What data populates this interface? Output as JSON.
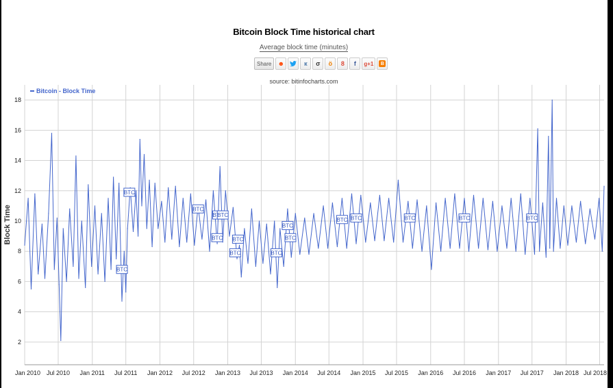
{
  "title": "Bitcoin Block Time historical chart",
  "subtitle": "Average block time (minutes)",
  "source": "source: bitinfocharts.com",
  "share": {
    "label": "Share",
    "buttons": [
      {
        "icon": "reddit-icon",
        "glyph": "☻",
        "color": "#ff4500"
      },
      {
        "icon": "twitter-icon",
        "glyph": "🐦",
        "color": "#1da1f2"
      },
      {
        "icon": "vk-icon",
        "glyph": "к",
        "color": "#4a76a8"
      },
      {
        "icon": "weibo-icon",
        "glyph": "σ",
        "color": "#333333"
      },
      {
        "icon": "odnoklassniki-icon",
        "glyph": "ö",
        "color": "#ee8208"
      },
      {
        "icon": "googleplus-icon",
        "glyph": "8",
        "color": "#dd4b39"
      },
      {
        "icon": "facebook-icon",
        "glyph": "f",
        "color": "#3b5998"
      },
      {
        "icon": "googleplus1-icon",
        "glyph": "g+1",
        "color": "#dd4b39"
      },
      {
        "icon": "blogger-icon",
        "glyph": "B",
        "color": "#f57d00"
      }
    ]
  },
  "chart_data": {
    "type": "line",
    "ylabel": "Block Time",
    "xlabel": "",
    "ylim": [
      0.5,
      19
    ],
    "yticks": [
      2,
      4,
      6,
      8,
      10,
      12,
      14,
      16,
      18
    ],
    "xlim": [
      "2010-01-01",
      "2018-07-25"
    ],
    "xticks": [
      {
        "date": "2010-01-01",
        "label": "Jan 2010"
      },
      {
        "date": "2010-07-01",
        "label": "Jul 2010"
      },
      {
        "date": "2011-01-01",
        "label": "Jan 2011"
      },
      {
        "date": "2011-07-01",
        "label": "Jul 2011"
      },
      {
        "date": "2012-01-01",
        "label": "Jan 2012"
      },
      {
        "date": "2012-07-01",
        "label": "Jul 2012"
      },
      {
        "date": "2013-01-01",
        "label": "Jan 2013"
      },
      {
        "date": "2013-07-01",
        "label": "Jul 2013"
      },
      {
        "date": "2014-01-01",
        "label": "Jan 2014"
      },
      {
        "date": "2014-07-01",
        "label": "Jul 2014"
      },
      {
        "date": "2015-01-01",
        "label": "Jan 2015"
      },
      {
        "date": "2015-07-01",
        "label": "Jul 2015"
      },
      {
        "date": "2016-01-01",
        "label": "Jan 2016"
      },
      {
        "date": "2016-07-01",
        "label": "Jul 2016"
      },
      {
        "date": "2017-01-01",
        "label": "Jan 2017"
      },
      {
        "date": "2017-07-01",
        "label": "Jul 2017"
      },
      {
        "date": "2018-01-01",
        "label": "Jan 2018"
      },
      {
        "date": "2018-07-01",
        "label": "Jul 2018"
      }
    ],
    "grid": true,
    "legend": "top-left",
    "series": [
      {
        "name": "Bitcoin - Block Time",
        "color": "#4466cc",
        "points": [
          [
            "2010-01-01",
            8.4
          ],
          [
            "2010-01-20",
            11.5
          ],
          [
            "2010-02-05",
            5.5
          ],
          [
            "2010-02-25",
            11.8
          ],
          [
            "2010-03-15",
            6.5
          ],
          [
            "2010-04-05",
            9.8
          ],
          [
            "2010-04-20",
            6.2
          ],
          [
            "2010-05-10",
            10.5
          ],
          [
            "2010-05-27",
            15.8
          ],
          [
            "2010-06-10",
            6.8
          ],
          [
            "2010-06-25",
            10.2
          ],
          [
            "2010-07-06",
            5.8
          ],
          [
            "2010-07-15",
            2.1
          ],
          [
            "2010-07-28",
            9.5
          ],
          [
            "2010-08-15",
            6.0
          ],
          [
            "2010-09-01",
            10.8
          ],
          [
            "2010-09-20",
            7.0
          ],
          [
            "2010-10-05",
            14.3
          ],
          [
            "2010-10-20",
            6.2
          ],
          [
            "2010-11-05",
            10.0
          ],
          [
            "2010-11-25",
            5.6
          ],
          [
            "2010-12-10",
            12.4
          ],
          [
            "2010-12-28",
            7.0
          ],
          [
            "2011-01-15",
            11.0
          ],
          [
            "2011-02-01",
            6.5
          ],
          [
            "2011-02-20",
            10.5
          ],
          [
            "2011-03-10",
            6.0
          ],
          [
            "2011-03-28",
            11.5
          ],
          [
            "2011-04-12",
            6.8
          ],
          [
            "2011-04-25",
            12.9
          ],
          [
            "2011-05-10",
            7.5
          ],
          [
            "2011-05-25",
            12.5
          ],
          [
            "2011-06-10",
            4.7
          ],
          [
            "2011-06-22",
            8.0
          ],
          [
            "2011-07-01",
            5.3
          ],
          [
            "2011-07-10",
            9.5
          ],
          [
            "2011-07-25",
            12.2
          ],
          [
            "2011-08-10",
            9.3
          ],
          [
            "2011-08-25",
            12.0
          ],
          [
            "2011-09-05",
            9.0
          ],
          [
            "2011-09-15",
            15.4
          ],
          [
            "2011-09-25",
            11.0
          ],
          [
            "2011-10-08",
            14.4
          ],
          [
            "2011-10-22",
            9.5
          ],
          [
            "2011-11-05",
            12.7
          ],
          [
            "2011-11-20",
            8.3
          ],
          [
            "2011-12-05",
            12.5
          ],
          [
            "2011-12-22",
            9.5
          ],
          [
            "2012-01-10",
            11.3
          ],
          [
            "2012-01-28",
            8.6
          ],
          [
            "2012-02-15",
            12.2
          ],
          [
            "2012-03-05",
            8.8
          ],
          [
            "2012-03-25",
            12.3
          ],
          [
            "2012-04-15",
            8.3
          ],
          [
            "2012-05-05",
            11.5
          ],
          [
            "2012-05-25",
            8.6
          ],
          [
            "2012-06-15",
            11.8
          ],
          [
            "2012-07-05",
            8.4
          ],
          [
            "2012-07-25",
            11.0
          ],
          [
            "2012-08-15",
            8.8
          ],
          [
            "2012-09-05",
            11.4
          ],
          [
            "2012-09-25",
            8.0
          ],
          [
            "2012-10-15",
            12.0
          ],
          [
            "2012-11-05",
            8.5
          ],
          [
            "2012-11-20",
            13.6
          ],
          [
            "2012-12-05",
            8.6
          ],
          [
            "2012-12-20",
            12.0
          ],
          [
            "2013-01-10",
            9.0
          ],
          [
            "2013-01-30",
            10.9
          ],
          [
            "2013-02-20",
            7.5
          ],
          [
            "2013-03-05",
            8.4
          ],
          [
            "2013-03-15",
            6.3
          ],
          [
            "2013-04-01",
            9.5
          ],
          [
            "2013-04-20",
            7.2
          ],
          [
            "2013-05-10",
            10.8
          ],
          [
            "2013-06-01",
            7.0
          ],
          [
            "2013-06-20",
            10.0
          ],
          [
            "2013-07-10",
            7.2
          ],
          [
            "2013-07-30",
            9.8
          ],
          [
            "2013-08-20",
            6.5
          ],
          [
            "2013-09-10",
            10.0
          ],
          [
            "2013-09-25",
            5.6
          ],
          [
            "2013-10-10",
            9.5
          ],
          [
            "2013-10-30",
            7.0
          ],
          [
            "2013-11-20",
            10.8
          ],
          [
            "2013-12-10",
            7.6
          ],
          [
            "2014-01-01",
            10.5
          ],
          [
            "2014-01-25",
            7.8
          ],
          [
            "2014-02-20",
            10.2
          ],
          [
            "2014-03-15",
            7.8
          ],
          [
            "2014-04-10",
            10.5
          ],
          [
            "2014-05-05",
            8.2
          ],
          [
            "2014-06-01",
            11.0
          ],
          [
            "2014-06-25",
            8.2
          ],
          [
            "2014-07-20",
            11.2
          ],
          [
            "2014-08-15",
            8.3
          ],
          [
            "2014-09-10",
            11.5
          ],
          [
            "2014-10-05",
            8.2
          ],
          [
            "2014-11-01",
            11.8
          ],
          [
            "2014-11-25",
            8.5
          ],
          [
            "2014-12-20",
            11.7
          ],
          [
            "2015-01-15",
            8.6
          ],
          [
            "2015-02-10",
            11.2
          ],
          [
            "2015-03-05",
            8.7
          ],
          [
            "2015-04-01",
            11.7
          ],
          [
            "2015-04-25",
            8.7
          ],
          [
            "2015-05-20",
            11.5
          ],
          [
            "2015-06-15",
            8.6
          ],
          [
            "2015-07-10",
            12.7
          ],
          [
            "2015-08-05",
            8.6
          ],
          [
            "2015-09-01",
            11.3
          ],
          [
            "2015-09-25",
            8.2
          ],
          [
            "2015-10-20",
            11.4
          ],
          [
            "2015-11-15",
            8.0
          ],
          [
            "2015-12-10",
            11.0
          ],
          [
            "2016-01-05",
            6.8
          ],
          [
            "2016-01-30",
            11.2
          ],
          [
            "2016-02-25",
            8.0
          ],
          [
            "2016-03-20",
            11.5
          ],
          [
            "2016-04-15",
            8.2
          ],
          [
            "2016-05-10",
            11.8
          ],
          [
            "2016-06-05",
            8.2
          ],
          [
            "2016-07-01",
            11.5
          ],
          [
            "2016-07-25",
            8.0
          ],
          [
            "2016-08-20",
            11.7
          ],
          [
            "2016-09-15",
            8.2
          ],
          [
            "2016-10-10",
            11.5
          ],
          [
            "2016-11-05",
            8.1
          ],
          [
            "2016-12-01",
            11.3
          ],
          [
            "2016-12-25",
            8.0
          ],
          [
            "2017-01-20",
            11.0
          ],
          [
            "2017-02-15",
            8.2
          ],
          [
            "2017-03-10",
            11.5
          ],
          [
            "2017-04-05",
            8.0
          ],
          [
            "2017-05-01",
            11.8
          ],
          [
            "2017-05-25",
            7.8
          ],
          [
            "2017-06-20",
            11.5
          ],
          [
            "2017-07-15",
            7.8
          ],
          [
            "2017-08-01",
            16.1
          ],
          [
            "2017-08-10",
            8.0
          ],
          [
            "2017-08-28",
            11.2
          ],
          [
            "2017-09-15",
            7.6
          ],
          [
            "2017-09-28",
            15.6
          ],
          [
            "2017-10-05",
            8.2
          ],
          [
            "2017-10-18",
            18.0
          ],
          [
            "2017-10-25",
            8.0
          ],
          [
            "2017-11-10",
            11.5
          ],
          [
            "2017-11-30",
            8.2
          ],
          [
            "2017-12-20",
            11.0
          ],
          [
            "2018-01-10",
            8.4
          ],
          [
            "2018-02-01",
            11.0
          ],
          [
            "2018-02-25",
            8.6
          ],
          [
            "2018-03-20",
            11.3
          ],
          [
            "2018-04-15",
            8.5
          ],
          [
            "2018-05-10",
            10.8
          ],
          [
            "2018-06-05",
            8.8
          ],
          [
            "2018-06-28",
            11.5
          ],
          [
            "2018-07-15",
            8.0
          ],
          [
            "2018-07-25",
            12.3
          ]
        ]
      }
    ],
    "annotations": [
      {
        "label": "BTC",
        "date": "2011-06-10",
        "y": 6.8
      },
      {
        "label": "BTC",
        "date": "2011-07-20",
        "y": 11.9
      },
      {
        "label": "BTC",
        "date": "2012-07-25",
        "y": 10.8
      },
      {
        "label": "BTC",
        "date": "2012-11-10",
        "y": 10.4
      },
      {
        "label": "BTC",
        "date": "2012-12-05",
        "y": 10.4
      },
      {
        "label": "BTC",
        "date": "2012-11-05",
        "y": 8.9
      },
      {
        "label": "BTC",
        "date": "2013-02-25",
        "y": 8.8
      },
      {
        "label": "BTC",
        "date": "2013-02-10",
        "y": 7.9
      },
      {
        "label": "BTC",
        "date": "2013-09-20",
        "y": 7.9
      },
      {
        "label": "BTC",
        "date": "2013-11-20",
        "y": 9.7
      },
      {
        "label": "BTC",
        "date": "2013-12-05",
        "y": 8.9
      },
      {
        "label": "BTC",
        "date": "2014-09-10",
        "y": 10.1
      },
      {
        "label": "BTC",
        "date": "2014-11-25",
        "y": 10.2
      },
      {
        "label": "BTC",
        "date": "2015-09-10",
        "y": 10.2
      },
      {
        "label": "BTC",
        "date": "2016-07-01",
        "y": 10.2
      },
      {
        "label": "BTC",
        "date": "2017-07-01",
        "y": 10.2
      }
    ]
  }
}
